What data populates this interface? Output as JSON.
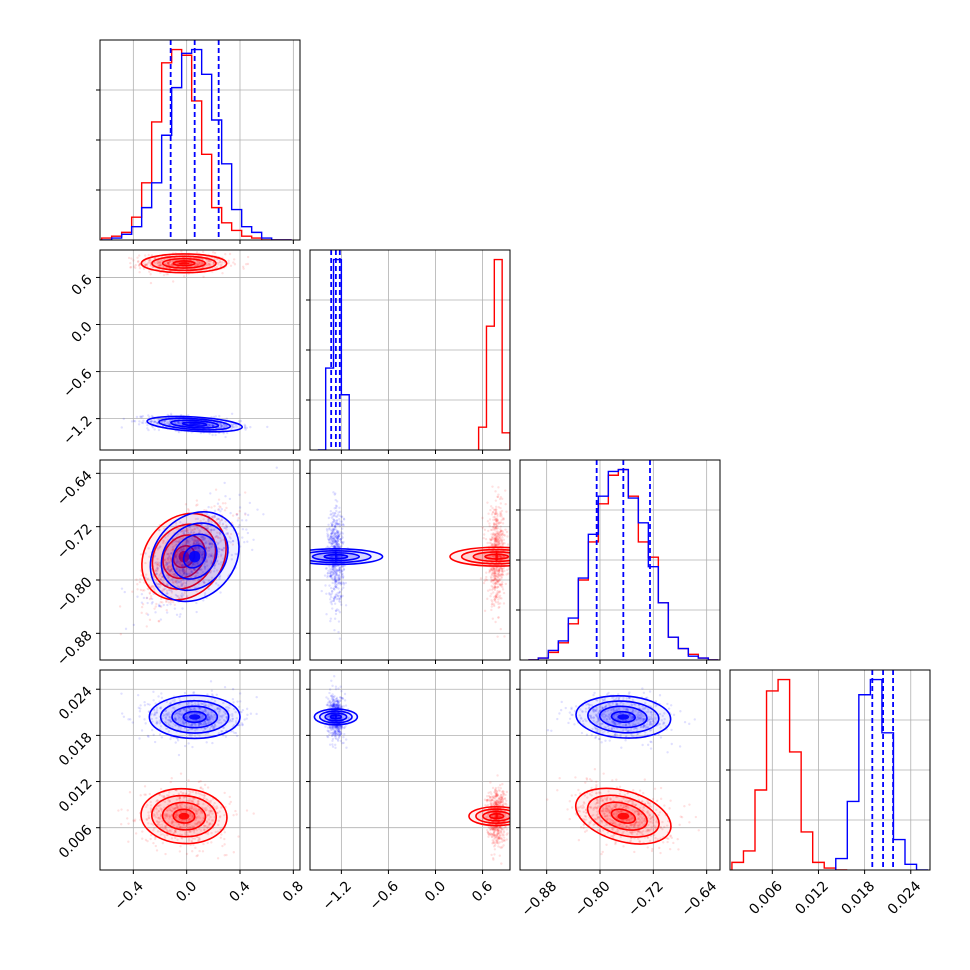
{
  "chart_data": {
    "type": "corner",
    "description_series": [
      {
        "color": "#ff0000"
      },
      {
        "color": "#0000ff"
      }
    ],
    "grid": true,
    "parameters": [
      {
        "range": [
          -0.65,
          0.85
        ],
        "ticks": [
          -0.4,
          0.0,
          0.4,
          0.8
        ],
        "tick_labels": [
          "−0.4",
          "0.0",
          "0.4",
          "0.8"
        ]
      },
      {
        "range": [
          -1.6,
          0.95
        ],
        "ticks": [
          -1.2,
          -0.6,
          0.0,
          0.6
        ],
        "tick_labels": [
          "−1.2",
          "−0.6",
          "0.0",
          "0.6"
        ]
      },
      {
        "range": [
          -0.92,
          -0.62
        ],
        "ticks": [
          -0.88,
          -0.8,
          -0.72,
          -0.64
        ],
        "tick_labels": [
          "−0.88",
          "−0.80",
          "−0.72",
          "−0.64"
        ]
      },
      {
        "range": [
          0.0005,
          0.0265
        ],
        "ticks": [
          0.006,
          0.012,
          0.018,
          0.024
        ],
        "tick_labels": [
          "0.006",
          "0.012",
          "0.018",
          "0.024"
        ]
      }
    ],
    "series": [
      {
        "color": "#ff0000",
        "mean": [
          -0.02,
          0.78,
          -0.765,
          0.0075
        ],
        "sd": [
          0.16,
          0.06,
          0.035,
          0.0018
        ],
        "histograms": [
          {
            "bin_centers": [
              -0.6,
              -0.525,
              -0.45,
              -0.375,
              -0.3,
              -0.225,
              -0.15,
              -0.075,
              0.0,
              0.075,
              0.15,
              0.225,
              0.3,
              0.375,
              0.45,
              0.525,
              0.6,
              0.675,
              0.75
            ],
            "counts": [
              0.01,
              0.02,
              0.04,
              0.12,
              0.3,
              0.62,
              0.93,
              1.0,
              0.97,
              0.73,
              0.45,
              0.17,
              0.09,
              0.05,
              0.02,
              0.01,
              0.0,
              0.0,
              0.0
            ]
          },
          {
            "bin_centers": [
              0.6,
              0.7,
              0.8,
              0.9
            ],
            "counts": [
              0.12,
              0.65,
              1.0,
              0.09
            ]
          },
          {
            "bin_centers": [
              -0.9,
              -0.885,
              -0.87,
              -0.855,
              -0.84,
              -0.825,
              -0.81,
              -0.795,
              -0.78,
              -0.765,
              -0.75,
              -0.735,
              -0.72,
              -0.705,
              -0.69,
              -0.675,
              -0.66,
              -0.645,
              -0.63
            ],
            "counts": [
              0.0,
              0.01,
              0.04,
              0.09,
              0.19,
              0.42,
              0.62,
              0.82,
              0.97,
              1.0,
              0.86,
              0.62,
              0.54,
              0.3,
              0.12,
              0.06,
              0.03,
              0.01,
              0.0
            ]
          },
          {
            "bin_centers": [
              0.0015,
              0.003,
              0.0045,
              0.006,
              0.0075,
              0.009,
              0.0105,
              0.012,
              0.0135,
              0.015
            ],
            "counts": [
              0.04,
              0.1,
              0.42,
              0.94,
              1.0,
              0.62,
              0.2,
              0.04,
              0.01,
              0.0
            ]
          }
        ]
      },
      {
        "color": "#0000ff",
        "mean": [
          0.06,
          -1.27,
          -0.765,
          0.0204
        ],
        "sd": [
          0.17,
          0.05,
          0.035,
          0.0014
        ],
        "quantiles": [
          [
            -0.12,
            0.06,
            0.24
          ],
          [
            -1.33,
            -1.27,
            -1.22
          ],
          [
            -0.805,
            -0.765,
            -0.725
          ],
          [
            0.019,
            0.0204,
            0.0217
          ]
        ],
        "histograms": [
          {
            "bin_centers": [
              -0.6,
              -0.525,
              -0.45,
              -0.375,
              -0.3,
              -0.225,
              -0.15,
              -0.075,
              0.0,
              0.075,
              0.15,
              0.225,
              0.3,
              0.375,
              0.45,
              0.525,
              0.6,
              0.675,
              0.75
            ],
            "counts": [
              0.0,
              0.01,
              0.03,
              0.07,
              0.17,
              0.3,
              0.55,
              0.8,
              0.98,
              1.0,
              0.87,
              0.63,
              0.4,
              0.16,
              0.07,
              0.04,
              0.01,
              0.0,
              0.0
            ]
          },
          {
            "bin_centers": [
              -1.45,
              -1.35,
              -1.25,
              -1.15
            ],
            "counts": [
              0.0,
              0.43,
              1.0,
              0.29
            ]
          },
          {
            "bin_centers": [
              -0.9,
              -0.885,
              -0.87,
              -0.855,
              -0.84,
              -0.825,
              -0.81,
              -0.795,
              -0.78,
              -0.765,
              -0.75,
              -0.735,
              -0.72,
              -0.705,
              -0.69,
              -0.675,
              -0.66,
              -0.645,
              -0.63
            ],
            "counts": [
              0.0,
              0.01,
              0.05,
              0.1,
              0.22,
              0.43,
              0.66,
              0.86,
              0.99,
              1.0,
              0.85,
              0.72,
              0.49,
              0.3,
              0.12,
              0.06,
              0.02,
              0.01,
              0.0
            ]
          },
          {
            "bin_centers": [
              0.015,
              0.0165,
              0.018,
              0.0195,
              0.021,
              0.0225,
              0.024,
              0.0255
            ],
            "counts": [
              0.06,
              0.36,
              0.92,
              1.0,
              0.72,
              0.16,
              0.03,
              0.0
            ]
          }
        ]
      }
    ]
  }
}
